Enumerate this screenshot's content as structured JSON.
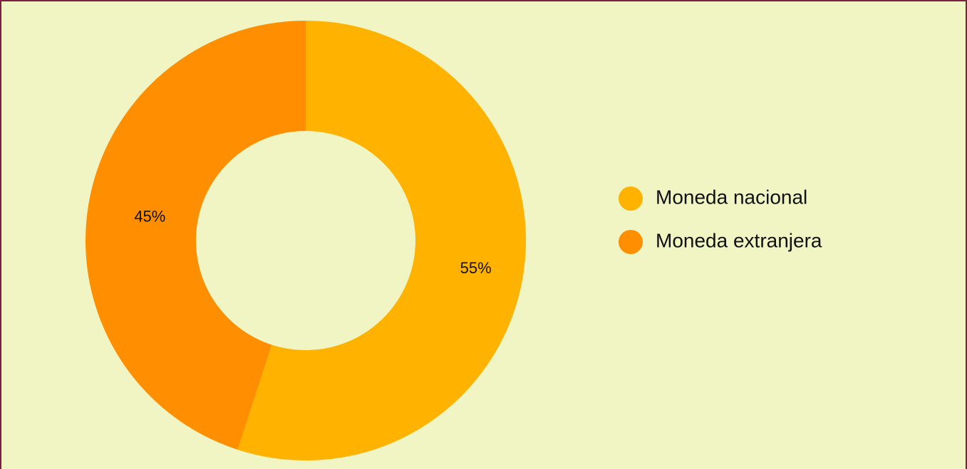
{
  "chart_data": {
    "type": "donut",
    "categories": [
      "Moneda nacional",
      "Moneda extranjera"
    ],
    "values": [
      55,
      45
    ],
    "value_labels": [
      "55%",
      "45%"
    ],
    "colors": [
      "#ffb300",
      "#ff8f00"
    ],
    "legend": "right"
  }
}
